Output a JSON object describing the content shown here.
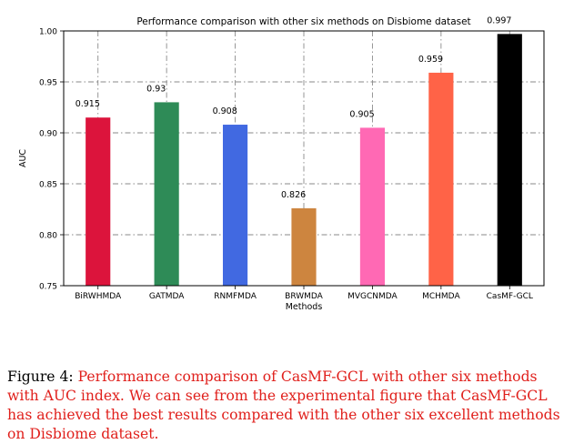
{
  "chart_data": {
    "type": "bar",
    "title": "Performance comparison with other six methods on Disbiome dataset",
    "xlabel": "Methods",
    "ylabel": "AUC",
    "ylim": [
      0.75,
      1.0
    ],
    "yticks": [
      "0.75",
      "0.80",
      "0.85",
      "0.90",
      "0.95",
      "1.00"
    ],
    "ytick_values": [
      0.75,
      0.8,
      0.85,
      0.9,
      0.95,
      1.0
    ],
    "grid": true,
    "grid_style": "dash-dot",
    "categories": [
      "BiRWHMDA",
      "GATMDA",
      "RNMFMDA",
      "BRWMDA",
      "MVGCNMDA",
      "MCHMDA",
      "CasMF-GCL"
    ],
    "values": [
      0.915,
      0.93,
      0.908,
      0.826,
      0.905,
      0.959,
      0.997
    ],
    "value_labels": [
      "0.915",
      "0.93",
      "0.908",
      "0.826",
      "0.905",
      "0.959",
      "0.997"
    ],
    "colors": [
      "#dc143c",
      "#2e8b57",
      "#4169e1",
      "#cd853f",
      "#ff69b4",
      "#ff6347",
      "#000000"
    ]
  },
  "caption": {
    "label": "Figure 4:",
    "text": "Performance comparison of CasMF-GCL with other six methods with AUC index. We can see from the experimental figure that CasMF-GCL has achieved the best results compared with the other six excellent methods on Disbiome dataset."
  }
}
